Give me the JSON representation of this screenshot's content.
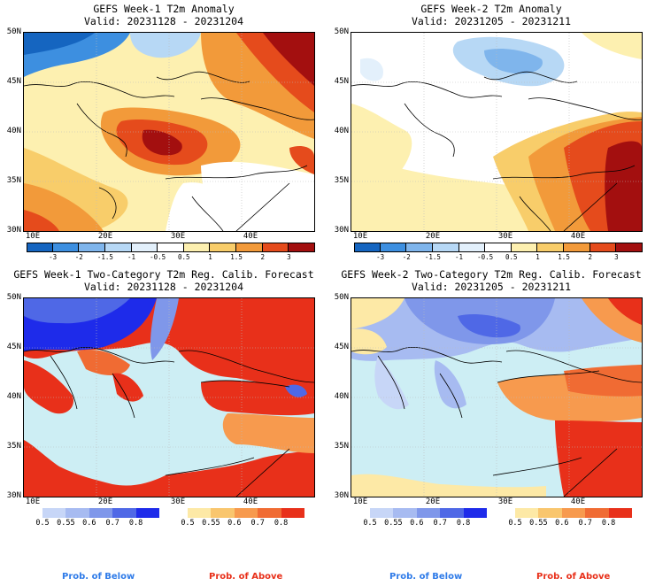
{
  "panels": [
    {
      "title": "GEFS Week-1 T2m Anomaly",
      "valid": "Valid: 20231128 - 20231204"
    },
    {
      "title": "GEFS Week-2 T2m Anomaly",
      "valid": "Valid: 20231205 - 20231211"
    },
    {
      "title": "GEFS Week-1 Two-Category T2m Reg. Calib. Forecast",
      "valid": "Valid: 20231128 - 20231204"
    },
    {
      "title": "GEFS Week-2 Two-Category T2m Reg. Calib. Forecast",
      "valid": "Valid: 20231205 - 20231211"
    }
  ],
  "axes": {
    "lat_labels": [
      "50N",
      "45N",
      "40N",
      "35N",
      "30N"
    ],
    "lon_labels": [
      "10E",
      "20E",
      "30E",
      "40E"
    ]
  },
  "anomaly_colorbar": {
    "ticks": [
      "-3",
      "-2",
      "-1.5",
      "-1",
      "-0.5",
      "0.5",
      "1",
      "1.5",
      "2",
      "3"
    ],
    "colors": [
      "#1565c0",
      "#3d8fe0",
      "#7fb5ec",
      "#b7d8f5",
      "#e3f0fb",
      "#ffffff",
      "#fdf0b0",
      "#f8cd6a",
      "#f29a3a",
      "#e54b1c",
      "#a30f0f"
    ]
  },
  "prob_below_colorbar": {
    "ticks": [
      "0.5",
      "0.55",
      "0.6",
      "0.7",
      "0.8"
    ],
    "colors": [
      "#c7d6f7",
      "#a7bbf1",
      "#7f97ea",
      "#4f68e6",
      "#1e2bea"
    ]
  },
  "prob_above_colorbar": {
    "ticks": [
      "0.5",
      "0.55",
      "0.6",
      "0.7",
      "0.8"
    ],
    "colors": [
      "#fde9a6",
      "#f9c66e",
      "#f79a4e",
      "#f06b33",
      "#e8301a"
    ]
  },
  "legend": {
    "below": "Prob. of Below",
    "above": "Prob. of Above",
    "below_color": "#2f7be8",
    "above_color": "#e8301a"
  },
  "sea_color": "#cdeef4"
}
